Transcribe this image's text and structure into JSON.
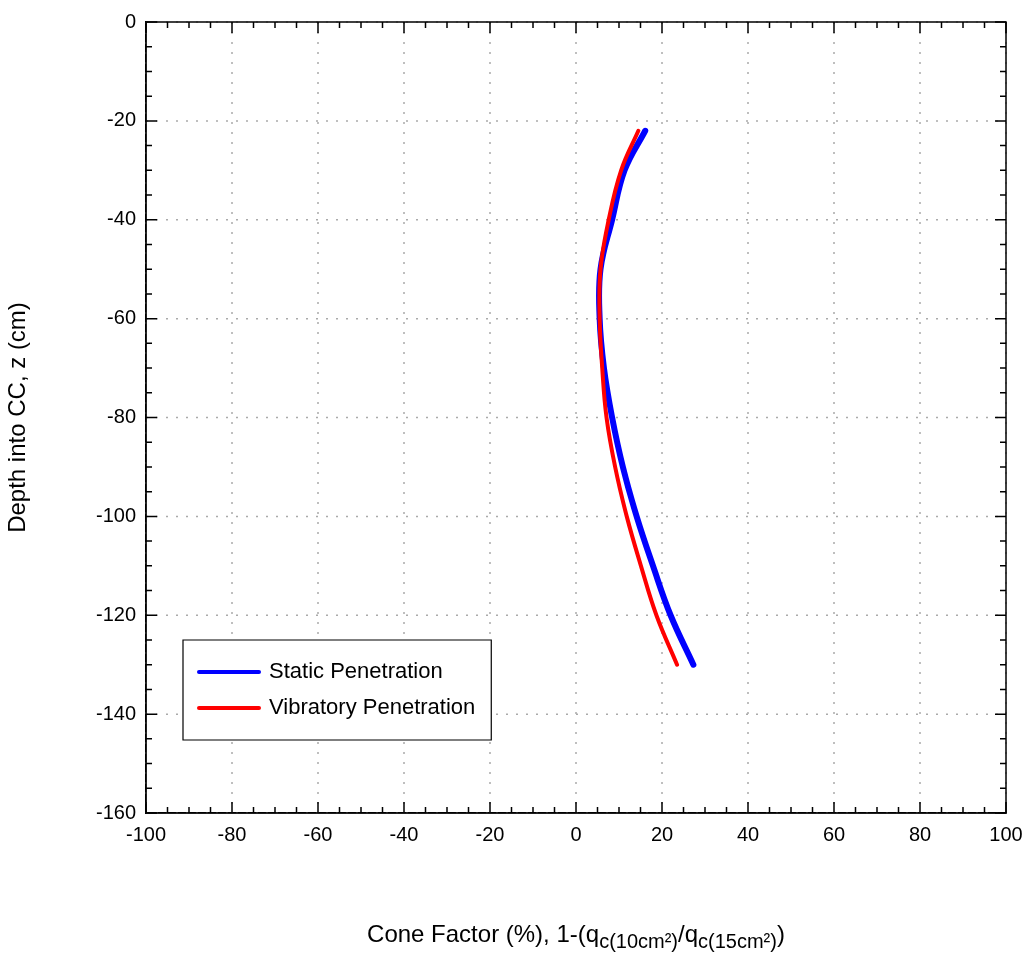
{
  "chart_data": {
    "type": "line",
    "xlabel": "Cone Factor (%), 1-(q$_{c(10cm²)}$/q$_{c(15cm²)}$)",
    "ylabel": "Depth into CC, z (cm)",
    "xlim": [
      -100,
      100
    ],
    "ylim": [
      -160,
      0
    ],
    "xticks": [
      -100,
      {
        "value": -95,
        "label": null
      },
      {
        "value": -90,
        "label": null
      },
      {
        "value": -85,
        "label": null
      },
      -80,
      {
        "value": -75,
        "label": null
      },
      {
        "value": -70,
        "label": null
      },
      {
        "value": -65,
        "label": null
      },
      -60,
      {
        "value": -55,
        "label": null
      },
      {
        "value": -50,
        "label": null
      },
      {
        "value": -45,
        "label": null
      },
      -40,
      {
        "value": -35,
        "label": null
      },
      {
        "value": -30,
        "label": null
      },
      {
        "value": -25,
        "label": null
      },
      -20,
      {
        "value": -15,
        "label": null
      },
      {
        "value": -10,
        "label": null
      },
      {
        "value": -5,
        "label": null
      },
      0,
      {
        "value": 5,
        "label": null
      },
      {
        "value": 10,
        "label": null
      },
      {
        "value": 15,
        "label": null
      },
      20,
      {
        "value": 25,
        "label": null
      },
      {
        "value": 30,
        "label": null
      },
      {
        "value": 35,
        "label": null
      },
      40,
      {
        "value": 45,
        "label": null
      },
      {
        "value": 50,
        "label": null
      },
      {
        "value": 55,
        "label": null
      },
      60,
      {
        "value": 65,
        "label": null
      },
      {
        "value": 70,
        "label": null
      },
      {
        "value": 75,
        "label": null
      },
      80,
      {
        "value": 85,
        "label": null
      },
      {
        "value": 90,
        "label": null
      },
      {
        "value": 95,
        "label": null
      },
      100
    ],
    "yticks": [
      -160,
      {
        "value": -155,
        "label": null
      },
      {
        "value": -150,
        "label": null
      },
      {
        "value": -145,
        "label": null
      },
      -140,
      {
        "value": -135,
        "label": null
      },
      {
        "value": -130,
        "label": null
      },
      {
        "value": -125,
        "label": null
      },
      -120,
      {
        "value": -115,
        "label": null
      },
      {
        "value": -110,
        "label": null
      },
      {
        "value": -105,
        "label": null
      },
      -100,
      {
        "value": -95,
        "label": null
      },
      {
        "value": -90,
        "label": null
      },
      {
        "value": -85,
        "label": null
      },
      -80,
      {
        "value": -75,
        "label": null
      },
      {
        "value": -70,
        "label": null
      },
      {
        "value": -65,
        "label": null
      },
      -60,
      {
        "value": -55,
        "label": null
      },
      {
        "value": -50,
        "label": null
      },
      {
        "value": -45,
        "label": null
      },
      -40,
      {
        "value": -35,
        "label": null
      },
      {
        "value": -30,
        "label": null
      },
      {
        "value": -25,
        "label": null
      },
      -20,
      {
        "value": -15,
        "label": null
      },
      {
        "value": -10,
        "label": null
      },
      {
        "value": -5,
        "label": null
      },
      0
    ],
    "grid": true,
    "legend": "bottom left",
    "line_style": "solid",
    "marker": "none",
    "series": [
      {
        "name": "Static Penetration",
        "color": "#0000ff",
        "x": [
          16.1,
          11.3,
          8.4,
          5.7,
          5.5,
          6.5,
          8.4,
          10.9,
          14.1,
          17.9,
          22.0,
          27.3
        ],
        "values": [
          -22,
          -30,
          -40,
          -50,
          -60,
          -70,
          -80,
          -90,
          -100,
          -110,
          -120,
          -130
        ]
      },
      {
        "name": "Vibratory Penetration",
        "color": "#ff0000",
        "x": [
          14.5,
          10.5,
          7.6,
          5.7,
          5.5,
          6.1,
          7.1,
          9.1,
          11.8,
          15.1,
          18.7,
          23.5
        ],
        "values": [
          -22,
          -30,
          -40,
          -50,
          -60,
          -70,
          -80,
          -90,
          -100,
          -110,
          -120,
          -130
        ]
      }
    ]
  }
}
